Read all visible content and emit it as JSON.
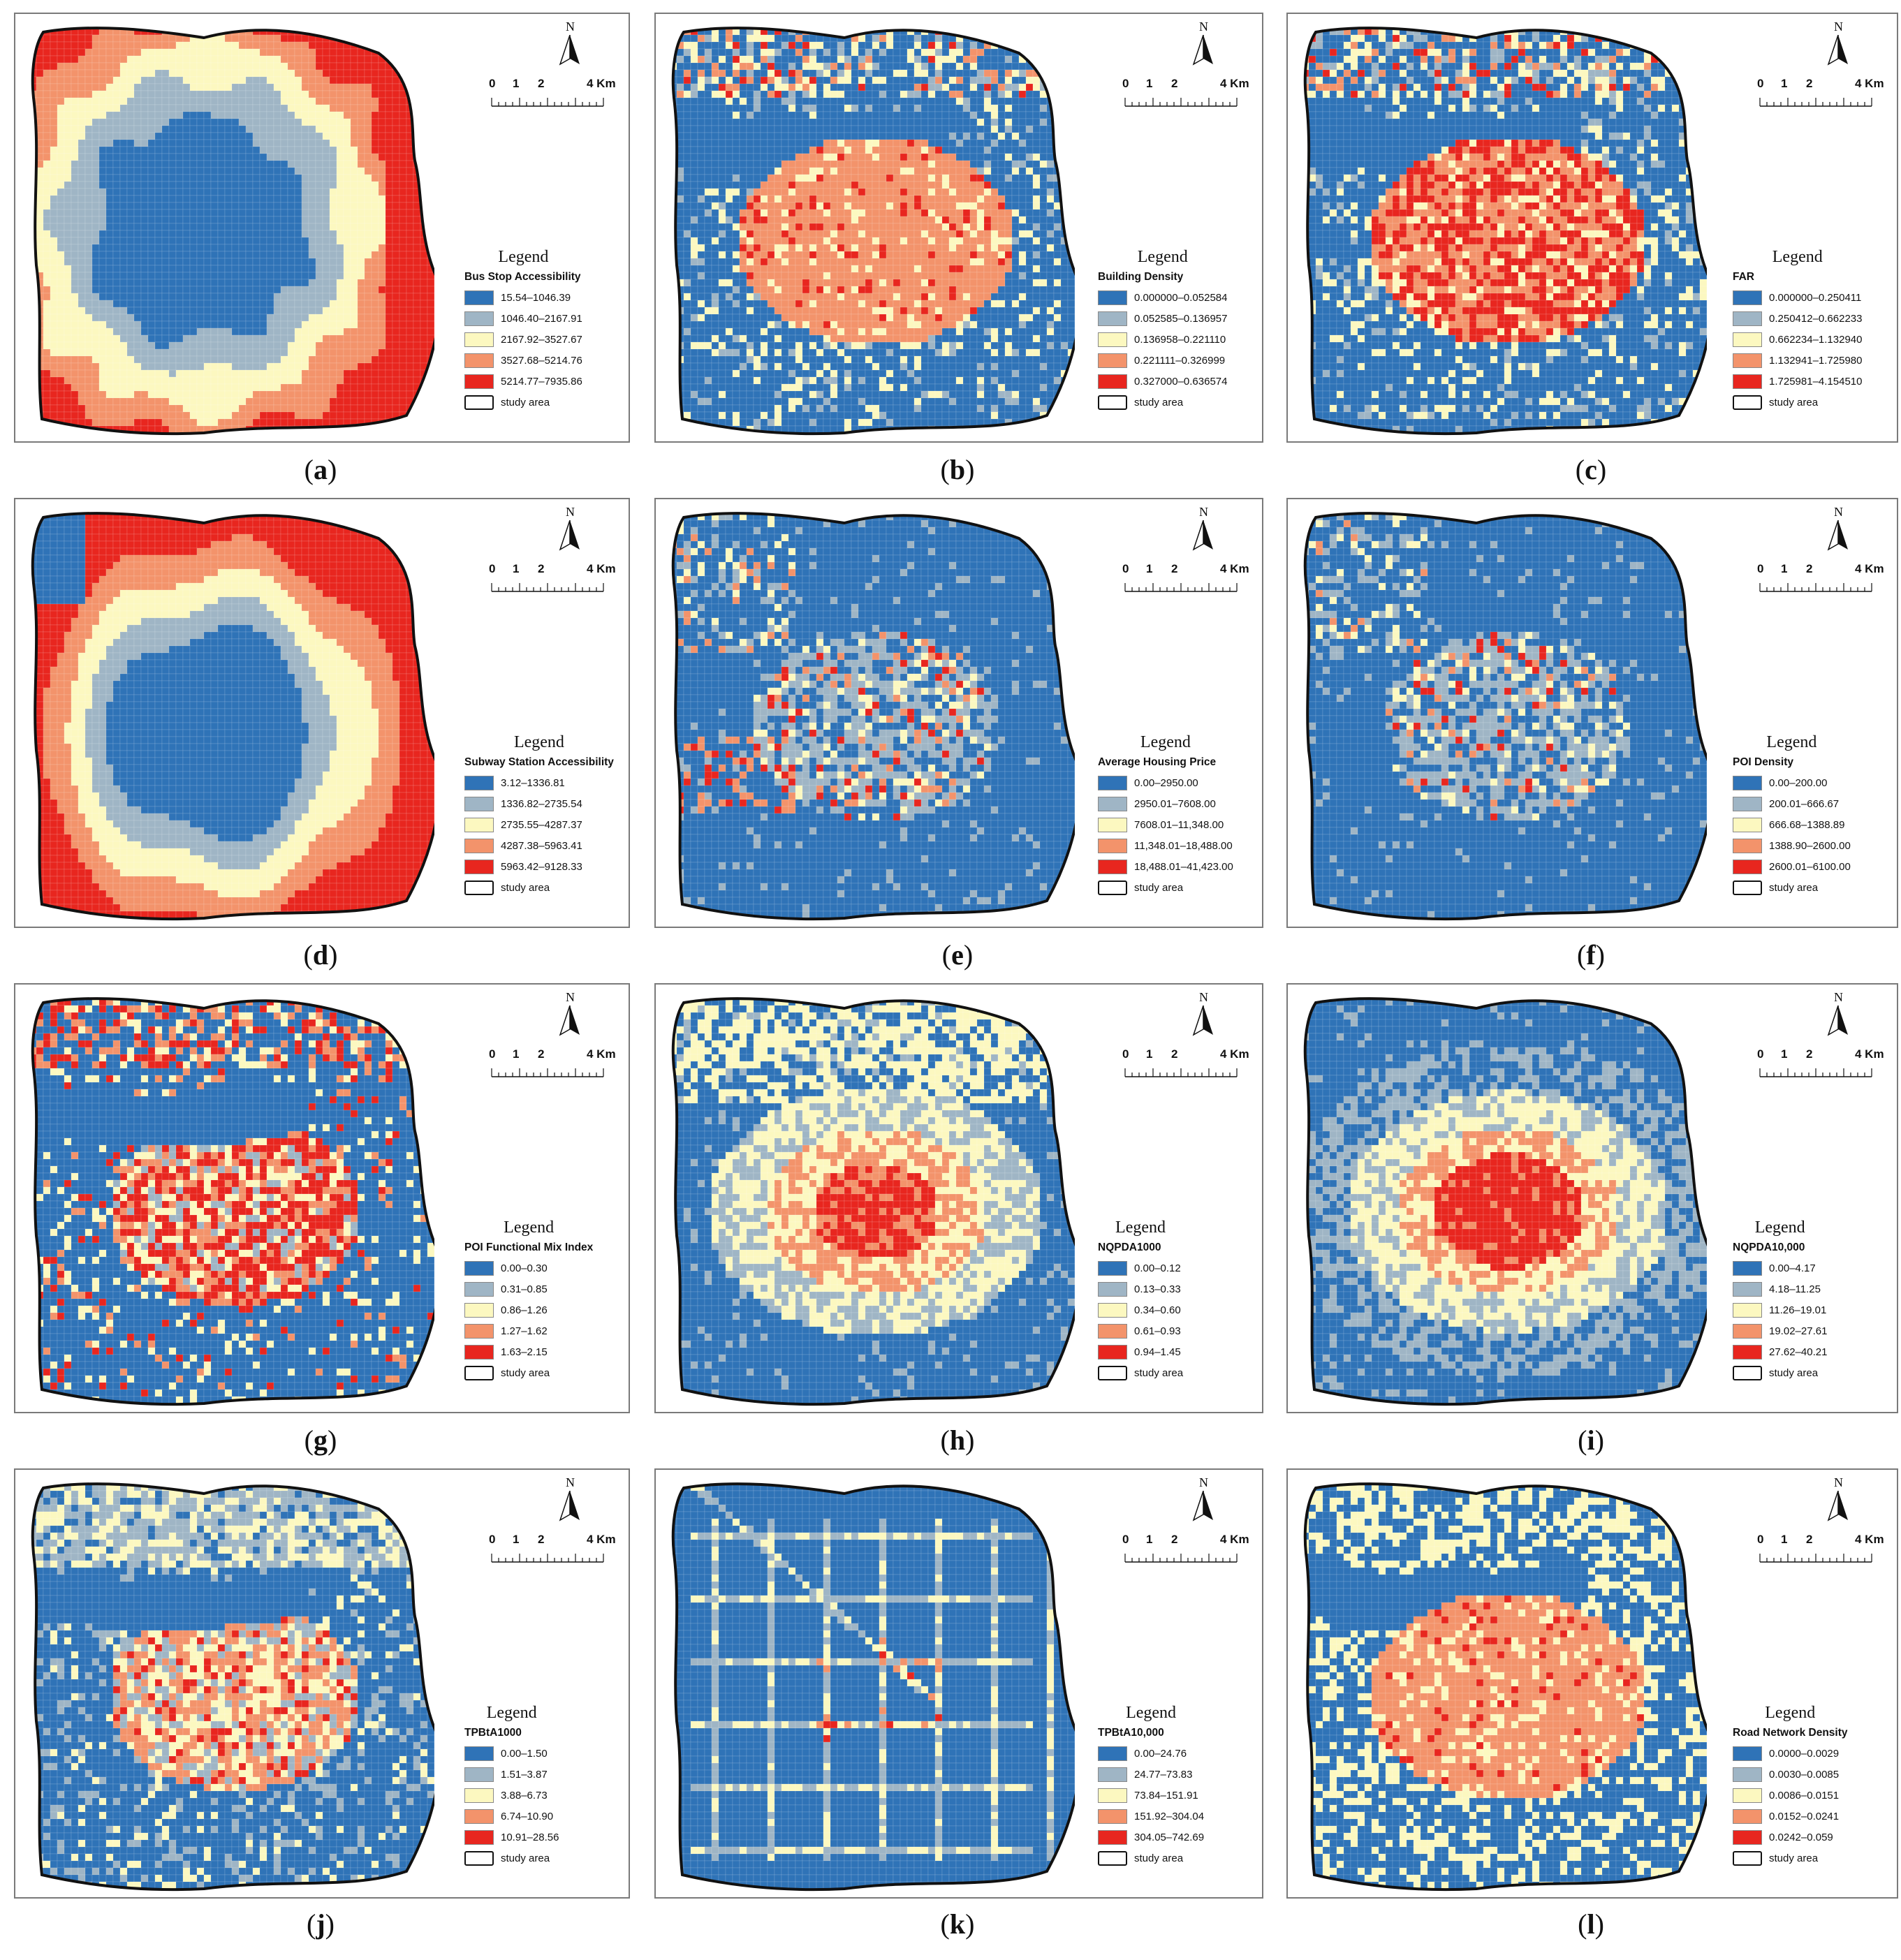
{
  "legend_heading": "Legend",
  "north_label": "N",
  "scale_labels": [
    "0",
    "1",
    "2",
    "4 Km"
  ],
  "study_area_label": "study area",
  "class_colors": [
    "#2f73b7",
    "#9fb5c5",
    "#fcf8c0",
    "#f3936b",
    "#e8261f"
  ],
  "panels": [
    {
      "letter": "a",
      "field": "Bus Stop Accessibility",
      "pattern": "bus",
      "classes": [
        "15.54–1046.39",
        "1046.40–2167.91",
        "2167.92–3527.67",
        "3527.68–5214.76",
        "5214.77–7935.86"
      ]
    },
    {
      "letter": "b",
      "field": "Building Density",
      "pattern": "building",
      "classes": [
        "0.000000–0.052584",
        "0.052585–0.136957",
        "0.136958–0.221110",
        "0.221111–0.326999",
        "0.327000–0.636574"
      ]
    },
    {
      "letter": "c",
      "field": "FAR",
      "pattern": "far",
      "classes": [
        "0.000000–0.250411",
        "0.250412–0.662233",
        "0.662234–1.132940",
        "1.132941–1.725980",
        "1.725981–4.154510"
      ]
    },
    {
      "letter": "d",
      "field": "Subway Station Accessibility",
      "pattern": "subway",
      "classes": [
        "3.12–1336.81",
        "1336.82–2735.54",
        "2735.55–4287.37",
        "4287.38–5963.41",
        "5963.42–9128.33"
      ]
    },
    {
      "letter": "e",
      "field": "Average Housing Price",
      "pattern": "housing",
      "classes": [
        "0.00–2950.00",
        "2950.01–7608.00",
        "7608.01–11,348.00",
        "11,348.01–18,488.00",
        "18,488.01–41,423.00"
      ]
    },
    {
      "letter": "f",
      "field": "POI Density",
      "pattern": "poi",
      "classes": [
        "0.00–200.00",
        "200.01–666.67",
        "666.68–1388.89",
        "1388.90–2600.00",
        "2600.01–6100.00"
      ]
    },
    {
      "letter": "g",
      "field": "POI Functional Mix Index",
      "pattern": "mix",
      "classes": [
        "0.00–0.30",
        "0.31–0.85",
        "0.86–1.26",
        "1.27–1.62",
        "1.63–2.15"
      ]
    },
    {
      "letter": "h",
      "field": "NQPDA1000",
      "pattern": "nq1",
      "classes": [
        "0.00–0.12",
        "0.13–0.33",
        "0.34–0.60",
        "0.61–0.93",
        "0.94–1.45"
      ]
    },
    {
      "letter": "i",
      "field": "NQPDA10,000",
      "pattern": "nq10",
      "classes": [
        "0.00–4.17",
        "4.18–11.25",
        "11.26–19.01",
        "19.02–27.61",
        "27.62–40.21"
      ]
    },
    {
      "letter": "j",
      "field": "TPBtA1000",
      "pattern": "tp1",
      "classes": [
        "0.00–1.50",
        "1.51–3.87",
        "3.88–6.73",
        "6.74–10.90",
        "10.91–28.56"
      ]
    },
    {
      "letter": "k",
      "field": "TPBtA10,000",
      "pattern": "tp10",
      "classes": [
        "0.00–24.76",
        "24.77–73.83",
        "73.84–151.91",
        "151.92–304.04",
        "304.05–742.69"
      ]
    },
    {
      "letter": "l",
      "field": "Road Network Density",
      "pattern": "road",
      "classes": [
        "0.0000–0.0029",
        "0.0030–0.0085",
        "0.0086–0.0151",
        "0.0152–0.0241",
        "0.0242–0.059"
      ]
    }
  ]
}
